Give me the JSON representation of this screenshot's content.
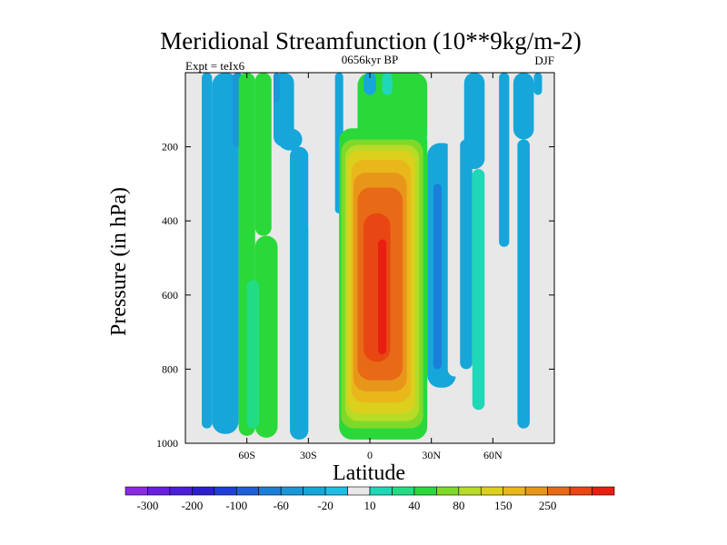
{
  "chart_data": {
    "type": "heatmap",
    "title": "Meridional Streamfunction (10**9kg/m-2)",
    "subtitle_left": "Expt = teIx6",
    "subtitle_center": "0656kyr BP",
    "subtitle_right": "DJF",
    "xlabel": "Latitude",
    "ylabel": "Pressure (in hPa)",
    "xlim": [
      -90,
      90
    ],
    "ylim": [
      1000,
      0
    ],
    "x_ticks": [
      {
        "value": -60,
        "label": "60S"
      },
      {
        "value": -30,
        "label": "30S"
      },
      {
        "value": 0,
        "label": "0"
      },
      {
        "value": 30,
        "label": "30N"
      },
      {
        "value": 60,
        "label": "60N"
      }
    ],
    "y_ticks": [
      {
        "value": 200,
        "label": "200"
      },
      {
        "value": 400,
        "label": "400"
      },
      {
        "value": 600,
        "label": "600"
      },
      {
        "value": 800,
        "label": "800"
      },
      {
        "value": 1000,
        "label": "1000"
      }
    ],
    "colorbar": {
      "levels": [
        -400,
        -300,
        -250,
        -200,
        -150,
        -100,
        -80,
        -60,
        -40,
        -20,
        -10,
        10,
        20,
        40,
        60,
        80,
        100,
        150,
        200,
        250,
        300,
        400
      ],
      "colors": [
        "#8a2be2",
        "#6a1fe0",
        "#4b1fd8",
        "#2c1fd0",
        "#1f3fd8",
        "#1f5fd8",
        "#1a7fd8",
        "#1a97d6",
        "#16a6da",
        "#1fbde6",
        "#e8e8e8",
        "#1ed8b8",
        "#22dc84",
        "#2ad83a",
        "#7fd92a",
        "#b8db28",
        "#dcd01c",
        "#e8b81a",
        "#e8961a",
        "#e86a16",
        "#e84612",
        "#e81f10"
      ],
      "labels": [
        {
          "value": -300,
          "label": "-300"
        },
        {
          "value": -200,
          "label": "-200"
        },
        {
          "value": -100,
          "label": "-100"
        },
        {
          "value": -60,
          "label": "-60"
        },
        {
          "value": -20,
          "label": "-20"
        },
        {
          "value": 10,
          "label": "10"
        },
        {
          "value": 40,
          "label": "40"
        },
        {
          "value": 80,
          "label": "80"
        },
        {
          "value": 150,
          "label": "150"
        },
        {
          "value": 250,
          "label": "250"
        }
      ]
    },
    "cells": [
      {
        "lat": [
          -82,
          -77
        ],
        "p": [
          0,
          960
        ],
        "color": "#16a6da"
      },
      {
        "lat": [
          -77,
          -64
        ],
        "p": [
          0,
          975
        ],
        "color": "#16a6da"
      },
      {
        "lat": [
          -67,
          -62
        ],
        "p": [
          0,
          200
        ],
        "color": "#1a97d6"
      },
      {
        "lat": [
          -64,
          -56
        ],
        "p": [
          0,
          980
        ],
        "color": "#2ad83a"
      },
      {
        "lat": [
          -56,
          -48
        ],
        "p": [
          0,
          440
        ],
        "color": "#2ad83a"
      },
      {
        "lat": [
          -56,
          -45
        ],
        "p": [
          440,
          985
        ],
        "color": "#2ad83a"
      },
      {
        "lat": [
          -60,
          -54
        ],
        "p": [
          560,
          960
        ],
        "color": "#22dc84"
      },
      {
        "lat": [
          -47,
          -37
        ],
        "p": [
          0,
          200
        ],
        "color": "#16a6da"
      },
      {
        "lat": [
          -39,
          -30
        ],
        "p": [
          200,
          990
        ],
        "color": "#16a6da"
      },
      {
        "lat": [
          -45,
          -33
        ],
        "p": [
          150,
          210
        ],
        "color": "#16a6da"
      },
      {
        "lat": [
          -47,
          -44
        ],
        "p": [
          0,
          80
        ],
        "color": "#1a97d6"
      },
      {
        "lat": [
          -30,
          -23
        ],
        "p": [
          0,
          440
        ],
        "color": "#e8e8e8"
      },
      {
        "lat": [
          -17,
          -13
        ],
        "p": [
          0,
          380
        ],
        "color": "#16a6da"
      },
      {
        "lat": [
          -15,
          28
        ],
        "p": [
          150,
          990
        ],
        "color": "#2ad83a"
      },
      {
        "lat": [
          -6,
          28
        ],
        "p": [
          0,
          200
        ],
        "color": "#2ad83a"
      },
      {
        "lat": [
          -14,
          26
        ],
        "p": [
          180,
          960
        ],
        "color": "#7fd92a"
      },
      {
        "lat": [
          -12,
          24
        ],
        "p": [
          195,
          940
        ],
        "color": "#b8db28"
      },
      {
        "lat": [
          -11,
          22
        ],
        "p": [
          210,
          920
        ],
        "color": "#dcd01c"
      },
      {
        "lat": [
          -9,
          20
        ],
        "p": [
          235,
          890
        ],
        "color": "#e8b81a"
      },
      {
        "lat": [
          -8,
          18
        ],
        "p": [
          270,
          860
        ],
        "color": "#e8961a"
      },
      {
        "lat": [
          -6,
          16
        ],
        "p": [
          310,
          830
        ],
        "color": "#e86a16"
      },
      {
        "lat": [
          -3,
          10
        ],
        "p": [
          380,
          780
        ],
        "color": "#e84612"
      },
      {
        "lat": [
          4,
          8
        ],
        "p": [
          450,
          760
        ],
        "color": "#e81f10"
      },
      {
        "lat": [
          -3,
          3
        ],
        "p": [
          0,
          60
        ],
        "color": "#16a6da"
      },
      {
        "lat": [
          6,
          11
        ],
        "p": [
          0,
          60
        ],
        "color": "#1ed8b8"
      },
      {
        "lat": [
          28,
          42
        ],
        "p": [
          190,
          850
        ],
        "color": "#16a6da"
      },
      {
        "lat": [
          31,
          35
        ],
        "p": [
          300,
          800
        ],
        "color": "#1a7fd8"
      },
      {
        "lat": [
          38,
          45
        ],
        "p": [
          120,
          820
        ],
        "color": "#e8e8e8"
      },
      {
        "lat": [
          46,
          56
        ],
        "p": [
          0,
          260
        ],
        "color": "#16a6da"
      },
      {
        "lat": [
          44,
          50
        ],
        "p": [
          180,
          800
        ],
        "color": "#16a6da"
      },
      {
        "lat": [
          50,
          56
        ],
        "p": [
          260,
          910
        ],
        "color": "#1ed8b8"
      },
      {
        "lat": [
          63,
          68
        ],
        "p": [
          0,
          470
        ],
        "color": "#16a6da"
      },
      {
        "lat": [
          70,
          80
        ],
        "p": [
          0,
          180
        ],
        "color": "#16a6da"
      },
      {
        "lat": [
          72,
          78
        ],
        "p": [
          180,
          960
        ],
        "color": "#16a6da"
      },
      {
        "lat": [
          80,
          84
        ],
        "p": [
          0,
          60
        ],
        "color": "#16a6da"
      }
    ]
  }
}
